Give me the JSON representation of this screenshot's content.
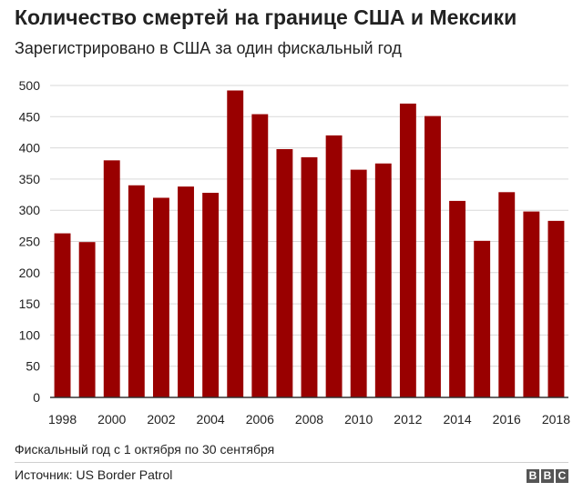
{
  "title": "Количество смертей на границе США и Мексики",
  "subtitle": "Зарегистрировано в США за один фискальный год",
  "note": "Фискальный год с 1 октября по 30 сентября",
  "source": "Источник: US Border Patrol",
  "logo": {
    "letters": [
      "B",
      "B",
      "C"
    ]
  },
  "colors": {
    "bar": "#990000",
    "grid": "#d9d9d9",
    "axis": "#333333",
    "text": "#222222"
  },
  "chart_data": {
    "type": "bar",
    "title": "Количество смертей на границе США и Мексики",
    "subtitle": "Зарегистрировано в США за один фискальный год",
    "categories": [
      "1998",
      "1999",
      "2000",
      "2001",
      "2002",
      "2003",
      "2004",
      "2005",
      "2006",
      "2007",
      "2008",
      "2009",
      "2010",
      "2011",
      "2012",
      "2013",
      "2014",
      "2015",
      "2016",
      "2017",
      "2018"
    ],
    "values": [
      263,
      249,
      380,
      340,
      320,
      338,
      328,
      492,
      454,
      398,
      385,
      420,
      365,
      375,
      471,
      451,
      315,
      251,
      329,
      298,
      283
    ],
    "x_tick_labels": [
      "1998",
      "2000",
      "2002",
      "2004",
      "2006",
      "2008",
      "2010",
      "2012",
      "2014",
      "2016",
      "2018"
    ],
    "y_ticks": [
      0,
      50,
      100,
      150,
      200,
      250,
      300,
      350,
      400,
      450,
      500
    ],
    "ylim": [
      0,
      500
    ],
    "xlabel": "",
    "ylabel": "",
    "grid": true,
    "legend": "none"
  }
}
